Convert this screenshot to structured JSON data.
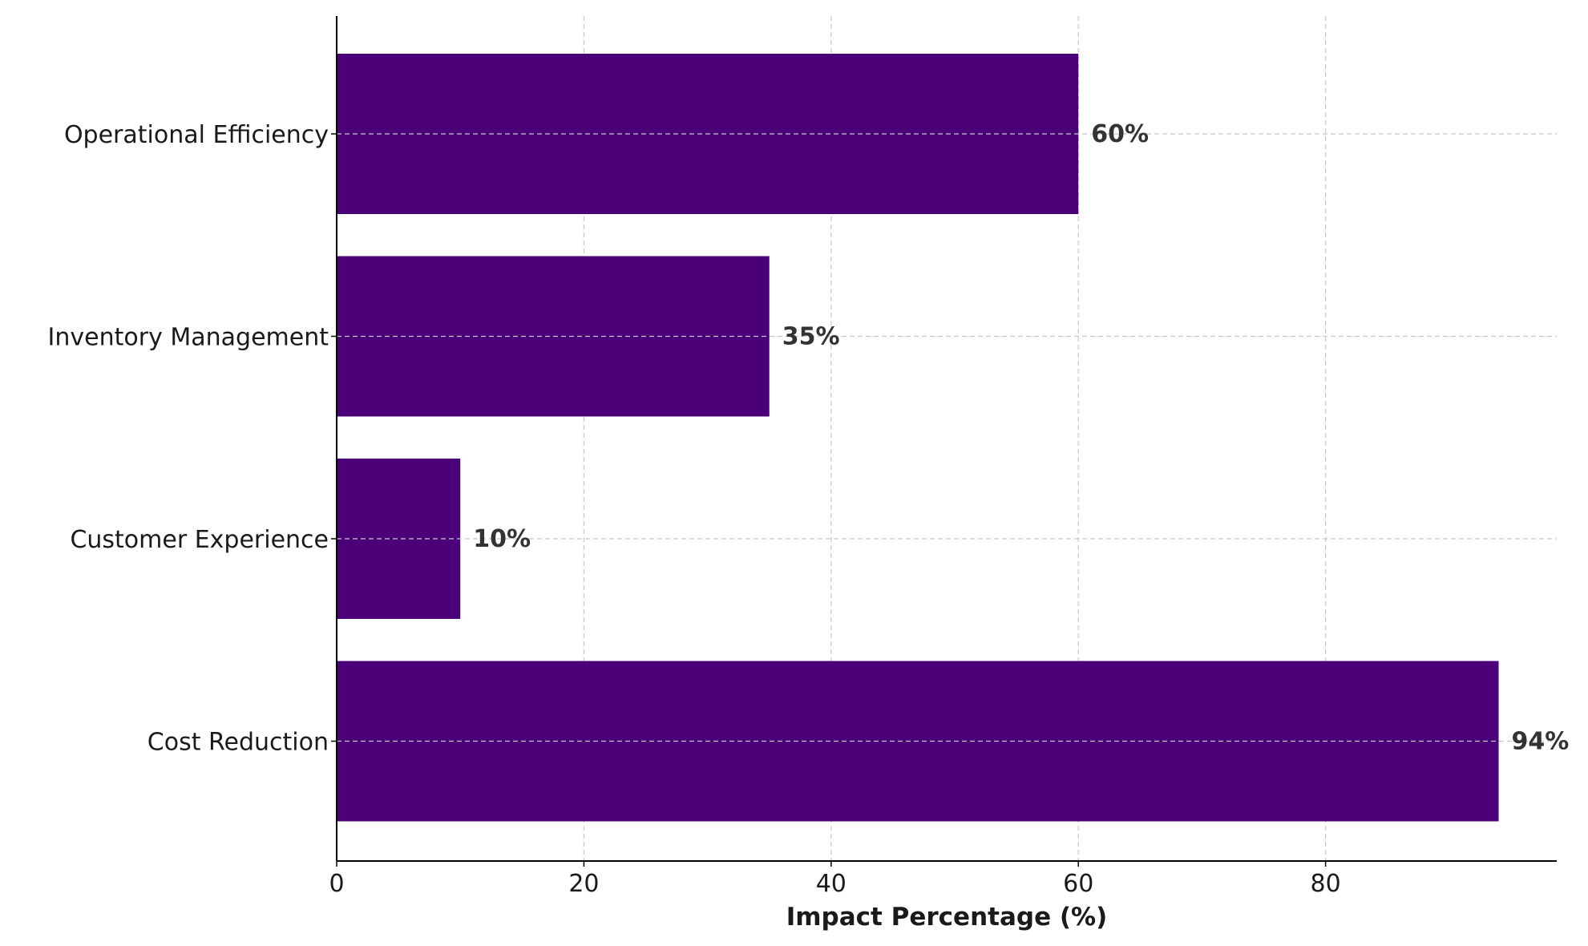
{
  "chart_data": {
    "type": "bar",
    "orientation": "horizontal",
    "title": "",
    "xlabel": "Impact Percentage (%)",
    "ylabel": "",
    "categories": [
      "Operational Efficiency",
      "Inventory Management",
      "Customer Experience",
      "Cost Reduction"
    ],
    "values": [
      60,
      35,
      10,
      94
    ],
    "value_labels": [
      "60%",
      "35%",
      "10%",
      "94%"
    ],
    "xlim": [
      0,
      98.7
    ],
    "xticks": [
      0,
      20,
      40,
      60,
      80
    ],
    "xtick_labels": [
      "0",
      "20",
      "40",
      "60",
      "80"
    ],
    "grid": true,
    "grid_style": "dashed",
    "colors": {
      "bar": "#4b0079",
      "grid": "#c8c8c8",
      "axis": "#000000"
    }
  }
}
